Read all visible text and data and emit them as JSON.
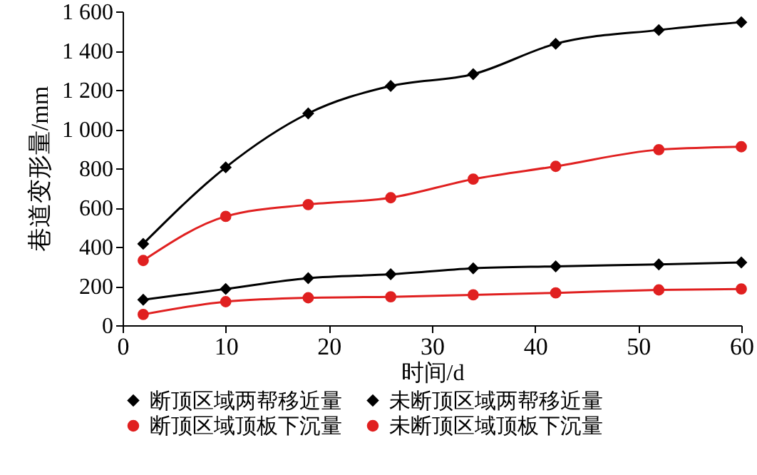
{
  "chart_data": {
    "type": "line",
    "xlabel": "时间/d",
    "ylabel": "巷道变形量/mm",
    "x": [
      2,
      10,
      18,
      26,
      34,
      42,
      52,
      60
    ],
    "series": [
      {
        "name": "断顶区域两帮移近量",
        "color": "#000000",
        "marker": "diamond",
        "values": [
          130,
          185,
          240,
          260,
          290,
          300,
          310,
          320
        ]
      },
      {
        "name": "未断顶区域两帮移近量",
        "color": "#000000",
        "marker": "diamond",
        "values": [
          415,
          805,
          1080,
          1220,
          1280,
          1435,
          1505,
          1545
        ]
      },
      {
        "name": "断顶区域顶板下沉量",
        "color": "#e02020",
        "marker": "circle",
        "values": [
          55,
          120,
          140,
          145,
          155,
          165,
          180,
          185
        ]
      },
      {
        "name": "未断顶区域顶板下沉量",
        "color": "#e02020",
        "marker": "circle",
        "values": [
          330,
          555,
          615,
          650,
          745,
          810,
          895,
          910
        ]
      }
    ],
    "xlim": [
      0,
      60
    ],
    "xticks": [
      0,
      10,
      20,
      30,
      40,
      50,
      60
    ],
    "ylim": [
      0,
      1600
    ],
    "yticks": [
      0,
      {
        "value": 200,
        "label": "200"
      },
      400,
      600,
      800,
      {
        "value": 1000,
        "label": "1 000"
      },
      {
        "value": 1200,
        "label": "1 200"
      },
      {
        "value": 1400,
        "label": "1 400"
      },
      {
        "value": 1600,
        "label": "1 600"
      }
    ],
    "grid": false,
    "legend": "bottom",
    "line_style": "solid"
  }
}
